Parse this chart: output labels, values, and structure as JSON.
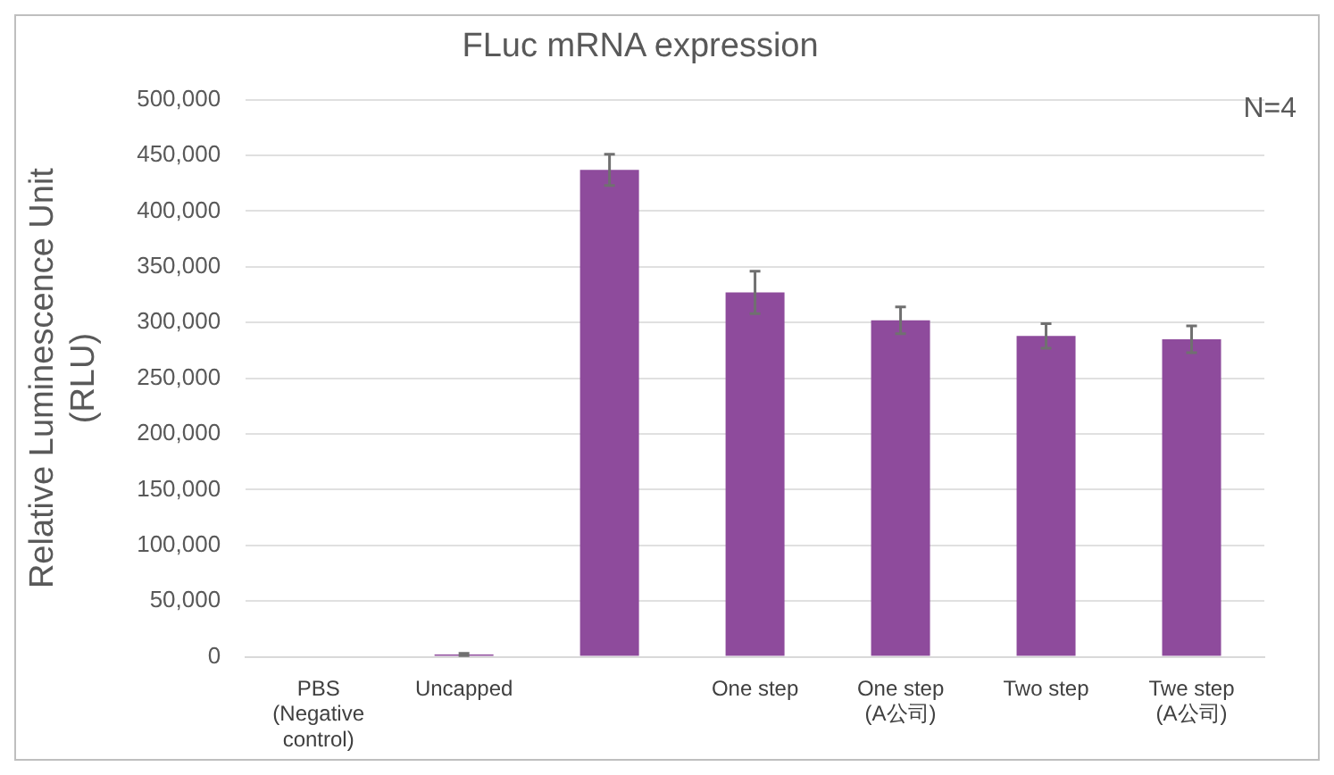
{
  "chart_data": {
    "type": "bar",
    "title": "FLuc mRNA expression",
    "ylabel": "Relative Luminescence Unit\n(RLU)",
    "categories": [
      "PBS\n(Negative\ncontrol)",
      "Uncapped",
      null,
      "One step",
      "One step\n(A公司)",
      "Two step",
      "Twe step\n(A公司)"
    ],
    "values": [
      0,
      2000,
      437000,
      327000,
      302000,
      288000,
      285000
    ],
    "errors": [
      null,
      1000,
      14000,
      19000,
      12000,
      11000,
      12000
    ],
    "color": "#8e4b9c",
    "ylim": [
      0,
      500000
    ],
    "yticks": [
      0,
      {
        "value": 50000,
        "label": "50,000"
      },
      {
        "value": 100000,
        "label": "100,000"
      },
      {
        "value": 150000,
        "label": "150,000"
      },
      {
        "value": 200000,
        "label": "200,000"
      },
      {
        "value": 250000,
        "label": "250,000"
      },
      {
        "value": 300000,
        "label": "300,000"
      },
      {
        "value": 350000,
        "label": "350,000"
      },
      {
        "value": 400000,
        "label": "400,000"
      },
      {
        "value": 450000,
        "label": "450,000"
      },
      {
        "value": 500000,
        "label": "500,000"
      }
    ],
    "grid": "y",
    "legend": false,
    "annotations": [
      "N=4"
    ]
  }
}
